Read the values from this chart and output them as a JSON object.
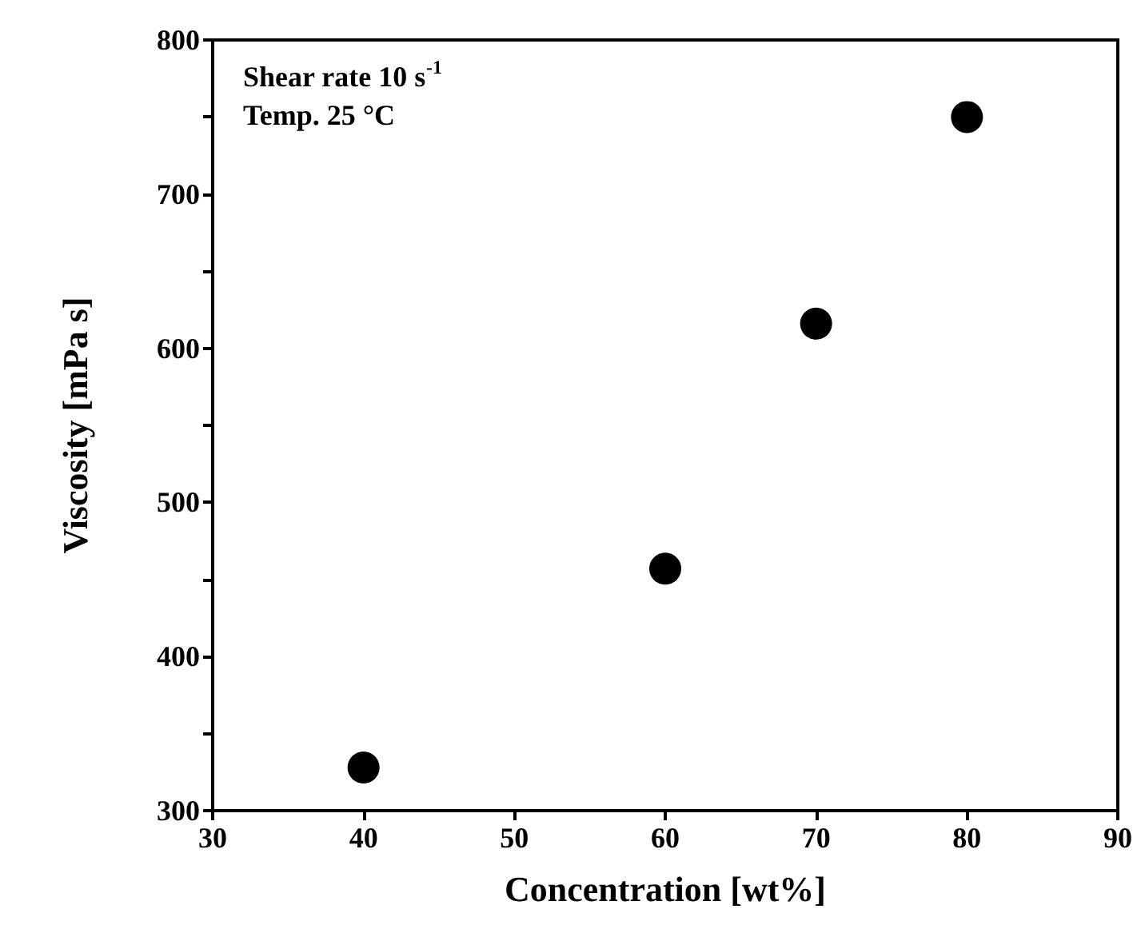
{
  "chart_data": {
    "type": "scatter",
    "xlabel": "Concentration [wt%]",
    "ylabel": "Viscosity [mPa s]",
    "annotations": [
      "Shear rate 10 s$^{-1}$",
      "Temp. 25 °C"
    ],
    "x": [
      40,
      60,
      70,
      80
    ],
    "series": [
      {
        "color": "#000000",
        "values": [
          328,
          457,
          616,
          750
        ]
      }
    ],
    "marker": "circle",
    "grid": false,
    "xlim": [
      30,
      90
    ],
    "xticks": [
      30,
      40,
      50,
      60,
      70,
      80,
      90
    ],
    "ylim": [
      300,
      800
    ],
    "yticks": [
      300,
      {
        "value": 350,
        "label": null
      },
      400,
      {
        "value": 450,
        "label": null
      },
      500,
      {
        "value": 550,
        "label": null
      },
      600,
      {
        "value": 650,
        "label": null
      },
      700,
      {
        "value": 750,
        "label": null
      },
      800
    ]
  }
}
